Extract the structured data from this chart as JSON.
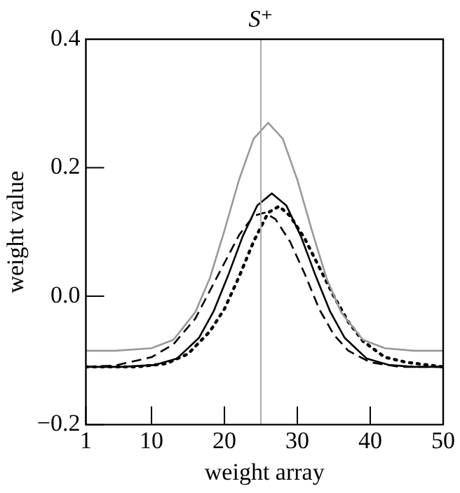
{
  "chart_data": {
    "type": "line",
    "xlabel": "weight array",
    "ylabel": "weight value",
    "xlim": [
      1,
      50
    ],
    "xticks": [
      1,
      10,
      20,
      30,
      40,
      50
    ],
    "ylim": [
      -0.2,
      0.4
    ],
    "yticks": [
      {
        "value": -0.2,
        "label": "−0.2"
      },
      {
        "value": 0,
        "label": "0.0"
      },
      {
        "value": 0.2,
        "label": "0.2"
      },
      {
        "value": 0.4,
        "label": "0.4"
      }
    ],
    "grid": false,
    "legend": false,
    "marker": "none",
    "ref_lines": [
      {
        "axis": "x",
        "value": 25,
        "label": "S⁺",
        "color": "#aaaaaa"
      }
    ],
    "series": [
      {
        "color": "#999999",
        "line_style": "solid",
        "x": [
          1,
          5,
          10,
          13,
          16,
          18,
          20,
          22,
          24,
          26,
          28,
          30,
          32,
          34,
          36,
          39,
          42,
          46,
          50
        ],
        "values": [
          -0.085,
          -0.085,
          -0.081,
          -0.068,
          -0.025,
          0.028,
          0.102,
          0.181,
          0.245,
          0.27,
          0.245,
          0.181,
          0.102,
          0.028,
          -0.025,
          -0.068,
          -0.081,
          -0.085,
          -0.085
        ]
      },
      {
        "color": "#000000",
        "line_style": "solid",
        "x": [
          1,
          6,
          10.5,
          13.5,
          16.5,
          18.5,
          20.5,
          22.5,
          24.5,
          26.5,
          28.5,
          30.5,
          32.5,
          34.5,
          36.5,
          39.5,
          42.5,
          46,
          50
        ],
        "values": [
          -0.11,
          -0.11,
          -0.107,
          -0.097,
          -0.065,
          -0.024,
          0.032,
          0.093,
          0.141,
          0.16,
          0.141,
          0.093,
          0.032,
          -0.024,
          -0.065,
          -0.097,
          -0.107,
          -0.11,
          -0.11
        ]
      },
      {
        "color": "#000000",
        "line_style": "dashed",
        "x": [
          1,
          5,
          10,
          13,
          16,
          19,
          22,
          24,
          25.5,
          27,
          29,
          31,
          33,
          35,
          37,
          40,
          44,
          50
        ],
        "values": [
          -0.11,
          -0.108,
          -0.095,
          -0.075,
          -0.035,
          0.03,
          0.095,
          0.125,
          0.13,
          0.12,
          0.085,
          0.035,
          -0.02,
          -0.06,
          -0.085,
          -0.103,
          -0.11,
          -0.11
        ]
      },
      {
        "color": "#000000",
        "line_style": "dotted",
        "x": [
          1,
          8,
          12,
          15,
          18,
          20,
          22,
          24,
          26,
          27.5,
          29,
          31,
          33,
          35,
          37,
          39,
          42,
          45,
          50
        ],
        "values": [
          -0.11,
          -0.11,
          -0.105,
          -0.09,
          -0.055,
          -0.02,
          0.03,
          0.085,
          0.13,
          0.14,
          0.125,
          0.09,
          0.045,
          0.0,
          -0.04,
          -0.07,
          -0.095,
          -0.103,
          -0.11
        ]
      }
    ]
  }
}
